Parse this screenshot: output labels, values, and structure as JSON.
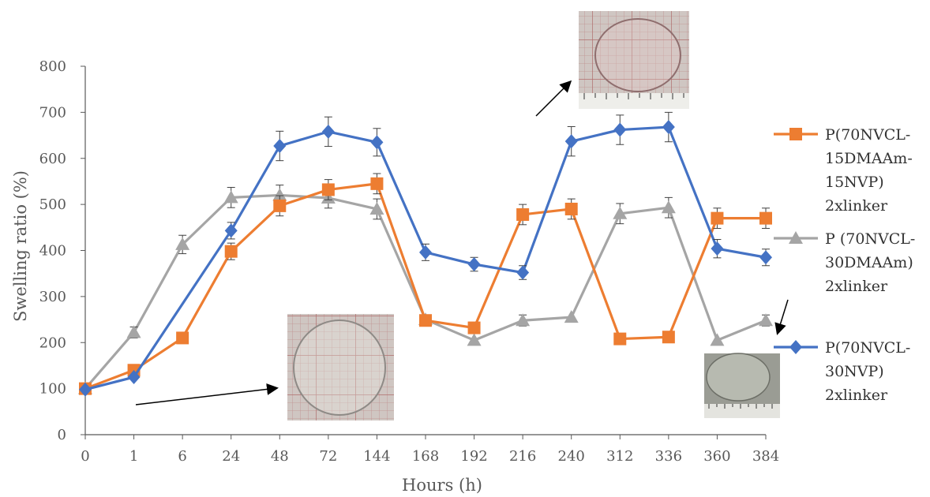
{
  "chart_data": {
    "type": "line",
    "xlabel": "Hours (h)",
    "ylabel": "Swelling ratio (%)",
    "ylim": [
      0,
      800
    ],
    "yticks": [
      0,
      100,
      200,
      300,
      400,
      500,
      600,
      700,
      800
    ],
    "categories": [
      "0",
      "1",
      "6",
      "24",
      "48",
      "72",
      "144",
      "168",
      "192",
      "216",
      "240",
      "312",
      "336",
      "360",
      "384"
    ],
    "grid": false,
    "legend_position": "right",
    "series": [
      {
        "name_lines": [
          "P(70NVCL-",
          "15DMAAm-",
          "15NVP)",
          "2xlinker"
        ],
        "color": "#ED7D31",
        "marker": "square",
        "values": [
          100,
          140,
          210,
          398,
          497,
          532,
          545,
          248,
          232,
          478,
          490,
          208,
          212,
          470,
          470
        ],
        "errors": [
          0,
          0,
          0,
          18,
          22,
          22,
          22,
          0,
          0,
          22,
          22,
          0,
          0,
          22,
          22
        ]
      },
      {
        "name_lines": [
          "P (70NVCL-",
          "30DMAAm)",
          "2xlinker"
        ],
        "color": "#A5A5A5",
        "marker": "triangle",
        "values": [
          100,
          222,
          413,
          515,
          520,
          514,
          490,
          250,
          205,
          248,
          255,
          480,
          493,
          205,
          248
        ],
        "errors": [
          0,
          12,
          20,
          22,
          22,
          22,
          22,
          0,
          0,
          12,
          0,
          22,
          22,
          0,
          12
        ]
      },
      {
        "name_lines": [
          "P(70NVCL-",
          "30NVP)",
          "2xlinker"
        ],
        "color": "#4472C4",
        "marker": "diamond",
        "start_index": 0,
        "values": [
          98,
          125,
          null,
          443,
          627,
          658,
          635,
          396,
          370,
          352,
          637,
          662,
          668,
          404,
          385
        ],
        "errors": [
          0,
          0,
          0,
          18,
          32,
          32,
          30,
          18,
          15,
          15,
          32,
          32,
          32,
          20,
          18
        ]
      }
    ]
  }
}
